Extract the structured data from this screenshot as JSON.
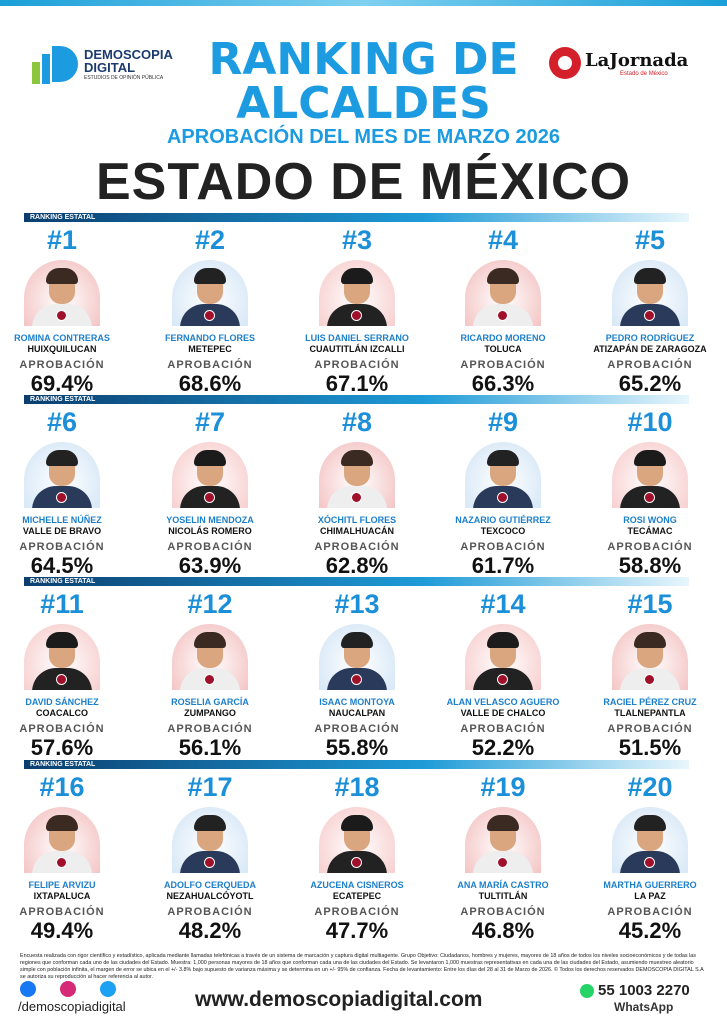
{
  "header": {
    "brand_name": "DEMOSCOPIA",
    "brand_sub": "DIGITAL",
    "brand_tagline": "ESTUDIOS DE OPINIÓN PÚBLICA",
    "title_line1": "RANKING DE",
    "title_line2": "ALCALDES",
    "subtitle": "APROBACIÓN DEL MES DE MARZO 2026",
    "region": "ESTADO DE MÉXICO",
    "partner_name": "LaJornada",
    "partner_sub": "Estado de México"
  },
  "sections": [
    {
      "label": "RANKING ESTATAL",
      "entries": [
        {
          "rank": "#1",
          "name": "ROMINA CONTRERAS",
          "municipality": "HUIXQUILUCAN",
          "approval_label": "APROBACIÓN",
          "approval": "69.4%"
        },
        {
          "rank": "#2",
          "name": "FERNANDO FLORES",
          "municipality": "METEPEC",
          "approval_label": "APROBACIÓN",
          "approval": "68.6%"
        },
        {
          "rank": "#3",
          "name": "LUIS DANIEL SERRANO",
          "municipality": "CUAUTITLÁN IZCALLI",
          "approval_label": "APROBACIÓN",
          "approval": "67.1%"
        },
        {
          "rank": "#4",
          "name": "RICARDO MORENO",
          "municipality": "TOLUCA",
          "approval_label": "APROBACIÓN",
          "approval": "66.3%"
        },
        {
          "rank": "#5",
          "name": "PEDRO RODRÍGUEZ",
          "municipality": "ATIZAPÁN DE ZARAGOZA",
          "approval_label": "APROBACIÓN",
          "approval": "65.2%"
        }
      ]
    },
    {
      "label": "RANKING ESTATAL",
      "entries": [
        {
          "rank": "#6",
          "name": "MICHELLE NÚÑEZ",
          "municipality": "VALLE DE BRAVO",
          "approval_label": "APROBACIÓN",
          "approval": "64.5%"
        },
        {
          "rank": "#7",
          "name": "YOSELIN MENDOZA",
          "municipality": "NICOLÁS ROMERO",
          "approval_label": "APROBACIÓN",
          "approval": "63.9%"
        },
        {
          "rank": "#8",
          "name": "XÓCHITL FLORES",
          "municipality": "CHIMALHUACÁN",
          "approval_label": "APROBACIÓN",
          "approval": "62.8%"
        },
        {
          "rank": "#9",
          "name": "NAZARIO GUTIÉRREZ",
          "municipality": "TEXCOCO",
          "approval_label": "APROBACIÓN",
          "approval": "61.7%"
        },
        {
          "rank": "#10",
          "name": "ROSI WONG",
          "municipality": "TECÁMAC",
          "approval_label": "APROBACIÓN",
          "approval": "58.8%"
        }
      ]
    },
    {
      "label": "RANKING ESTATAL",
      "entries": [
        {
          "rank": "#11",
          "name": "DAVID SÁNCHEZ",
          "municipality": "COACALCO",
          "approval_label": "APROBACIÓN",
          "approval": "57.6%"
        },
        {
          "rank": "#12",
          "name": "ROSELIA GARCÍA",
          "municipality": "ZUMPANGO",
          "approval_label": "APROBACIÓN",
          "approval": "56.1%"
        },
        {
          "rank": "#13",
          "name": "ISAAC MONTOYA",
          "municipality": "NAUCALPAN",
          "approval_label": "APROBACIÓN",
          "approval": "55.8%"
        },
        {
          "rank": "#14",
          "name": "ALAN VELASCO AGUERO",
          "municipality": "VALLE DE CHALCO",
          "approval_label": "APROBACIÓN",
          "approval": "52.2%"
        },
        {
          "rank": "#15",
          "name": "RACIEL PÉREZ CRUZ",
          "municipality": "TLALNEPANTLA",
          "approval_label": "APROBACIÓN",
          "approval": "51.5%"
        }
      ]
    },
    {
      "label": "RANKING ESTATAL",
      "entries": [
        {
          "rank": "#16",
          "name": "FELIPE ARVIZU",
          "municipality": "IXTAPALUCA",
          "approval_label": "APROBACIÓN",
          "approval": "49.4%"
        },
        {
          "rank": "#17",
          "name": "ADOLFO CERQUEDA",
          "municipality": "NEZAHUALCÓYOTL",
          "approval_label": "APROBACIÓN",
          "approval": "48.2%"
        },
        {
          "rank": "#18",
          "name": "AZUCENA CISNEROS",
          "municipality": "ECATEPEC",
          "approval_label": "APROBACIÓN",
          "approval": "47.7%"
        },
        {
          "rank": "#19",
          "name": "ANA MARÍA CASTRO",
          "municipality": "TULTITLÁN",
          "approval_label": "APROBACIÓN",
          "approval": "46.8%"
        },
        {
          "rank": "#20",
          "name": "MARTHA GUERRERO",
          "municipality": "LA PAZ",
          "approval_label": "APROBACIÓN",
          "approval": "45.2%"
        }
      ]
    }
  ],
  "footer": {
    "disclaimer": "Encuesta realizada con rigor científico y estadístico, aplicada mediante llamadas telefónicas a través de un sistema de marcación y captura digital multiagente. Grupo Objetivo: Ciudadanos, hombres y mujeres, mayores de 18 años de todos los niveles socioeconómicos y de todas las regiones que conforman cada uno de las ciudades del Estado. Muestra: 1,000 personas mayores de 18 años que conforman cada una de las ciudades del Estado. Se levantaron 1,000 muestras representativas en cada una de las ciudades del Estado, asumiendo muestreo aleatorio simple con población infinita, el margen de error se ubica en el +/- 3.8% bajo supuesto de varianza máxima y se determina en un +/- 95% de confianza. Fecha de levantamiento: Entre los días del 28 al 31 de Marzo de 2026. © Todos los derechos reservados DEMOSCOPIA DIGITAL S.A se autoriza su reproducción al hacer referencia al autor.",
    "social_handle": "/demoscopiadigital",
    "website": "www.demoscopiadigital.com",
    "phone": "55 1003 2270",
    "phone_label": "WhatsApp"
  }
}
